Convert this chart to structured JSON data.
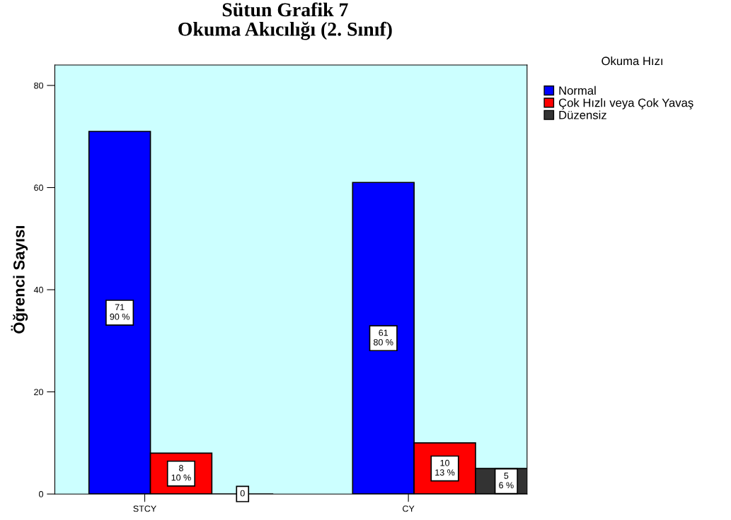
{
  "chart_data": {
    "type": "bar",
    "title": "Sütun Grafik 7\nOkuma Akıcılığı (2. Sınıf)",
    "ylabel": "Öğrenci Sayısı",
    "legend_title": "Okuma Hızı",
    "categories": [
      "STCY",
      "CY"
    ],
    "series": [
      {
        "name": "Normal",
        "color": "#0000ff",
        "values": [
          71,
          61
        ],
        "value_labels": [
          "71\n90 %",
          "61\n80 %"
        ]
      },
      {
        "name": "Çok Hızlı veya Çok Yavaş",
        "color": "#ff0000",
        "values": [
          8,
          10
        ],
        "value_labels": [
          "8\n10 %",
          "10\n13 %"
        ]
      },
      {
        "name": "Düzensiz",
        "color": "#333333",
        "values": [
          0,
          5
        ],
        "value_labels": [
          "0",
          "5\n6 %"
        ]
      }
    ],
    "ylim": [
      0,
      84
    ],
    "yticks": [
      0,
      20,
      40,
      60,
      80
    ],
    "grid": false,
    "legend": "top right"
  }
}
